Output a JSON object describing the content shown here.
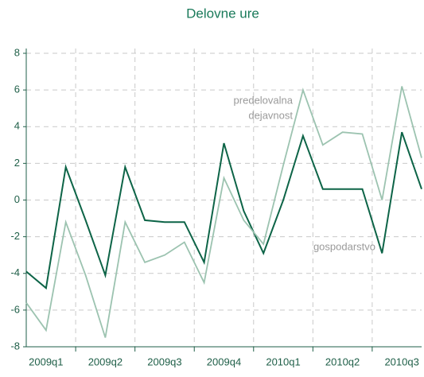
{
  "chart_data": {
    "type": "line",
    "title": "Delovne ure",
    "categories": [
      null,
      "2009q1",
      null,
      null,
      "2009q2",
      null,
      null,
      "2009q3",
      null,
      null,
      "2009q4",
      null,
      null,
      "2010q1",
      null,
      null,
      "2010q2",
      null,
      null,
      "2010q3",
      null
    ],
    "series": [
      {
        "name": "gospodarstvo",
        "color": "#0d6447",
        "values": [
          -3.9,
          -4.8,
          1.8,
          -1.1,
          -4.1,
          1.8,
          -1.1,
          -1.2,
          -1.2,
          -3.4,
          3.1,
          -0.6,
          -2.9,
          0,
          3.5,
          0.6,
          0.6,
          0.6,
          -2.9,
          3.7,
          0.6
        ]
      },
      {
        "name": "predelovalna dejavnost",
        "color": "#9cc3b0",
        "values": [
          -5.6,
          -7.1,
          -1.2,
          -4.1,
          -7.5,
          -1.2,
          -3.4,
          -3.0,
          -2.3,
          -4.5,
          1.2,
          -1.1,
          -2.4,
          1.9,
          6.0,
          3.0,
          3.7,
          3.6,
          0,
          6.2,
          2.3
        ]
      }
    ],
    "annotations": [
      {
        "lines": [
          "predelovalna",
          "dejavnost"
        ]
      },
      {
        "lines": [
          "gospodarstvo"
        ]
      }
    ],
    "ylim": [
      -8,
      8
    ],
    "yticks": [
      -8,
      -6,
      -4,
      -2,
      0,
      2,
      4,
      6,
      8
    ],
    "grid": true
  }
}
